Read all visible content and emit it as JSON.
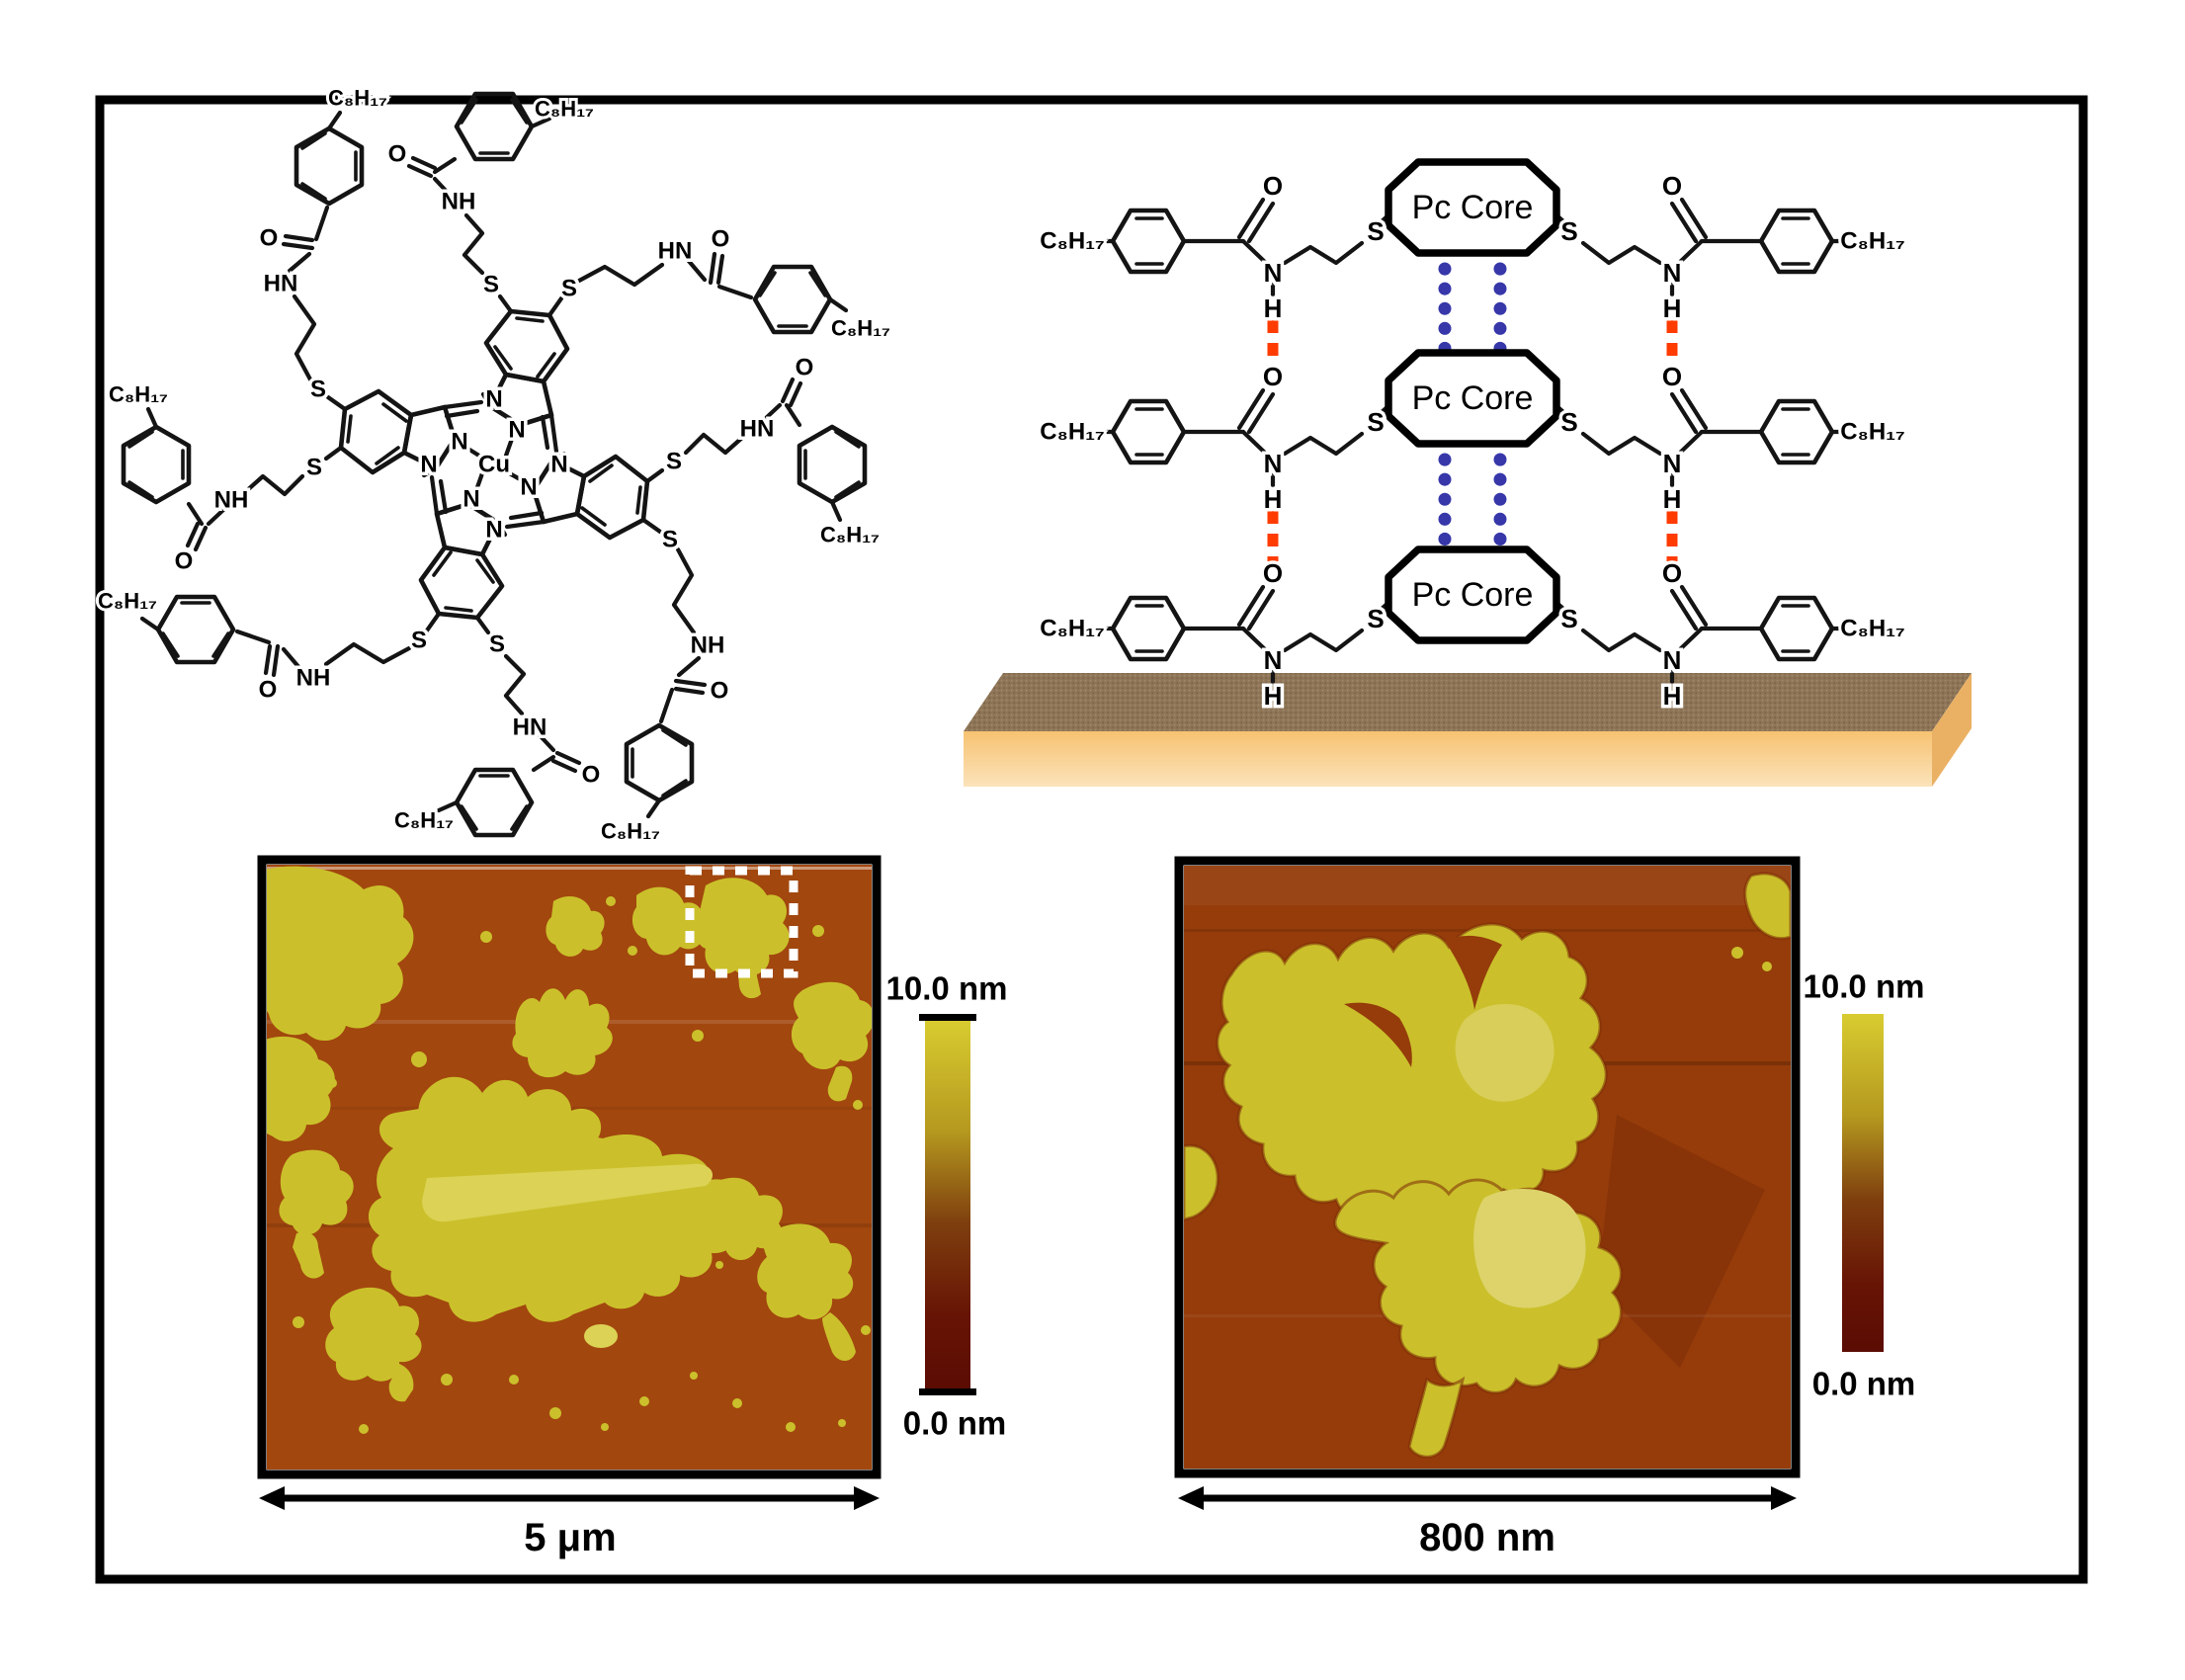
{
  "molecule": {
    "central_atom": "Cu",
    "nitrogen": "N",
    "sulfur": "S",
    "oxygen": "O",
    "amide_hn": "HN",
    "amide_nh": "NH",
    "octyl_chain": "C₈H₁₇"
  },
  "stack_diagram": {
    "core_label": "Pc Core",
    "sulfur": "S",
    "oxygen": "O",
    "nitrogen": "N",
    "hydrogen": "H",
    "octyl_chain": "C₈H₁₇",
    "hbond_color": "#ff3b00",
    "pi_stack_color": "#3737aa",
    "substrate_top_color": "#8e7557",
    "substrate_front_color": "#f8c878",
    "substrate_front_color_bottom": "#fbe2b8",
    "substrate_side_color": "#eab164"
  },
  "colorbar": {
    "gradient": [
      "#d8cc30",
      "#b5991f",
      "#7e3f0e",
      "#671405",
      "#5b0c03"
    ]
  },
  "afm_left": {
    "scale_label": "5 μm",
    "colorbar_max": "10.0  nm",
    "colorbar_min": "0.0 nm",
    "background_color": "#a2470e",
    "island_color": "#cbc02b",
    "island_light_color": "#dcd255",
    "highlight_box_color": "#ffffff"
  },
  "afm_right": {
    "scale_label": "800 nm",
    "colorbar_max": "10.0 nm",
    "colorbar_min": "0.0 nm",
    "background_color": "#953c0a",
    "background_dark_color": "#7b2a06",
    "island_color": "#cbc02b",
    "island_light_color": "#ddd36a"
  }
}
